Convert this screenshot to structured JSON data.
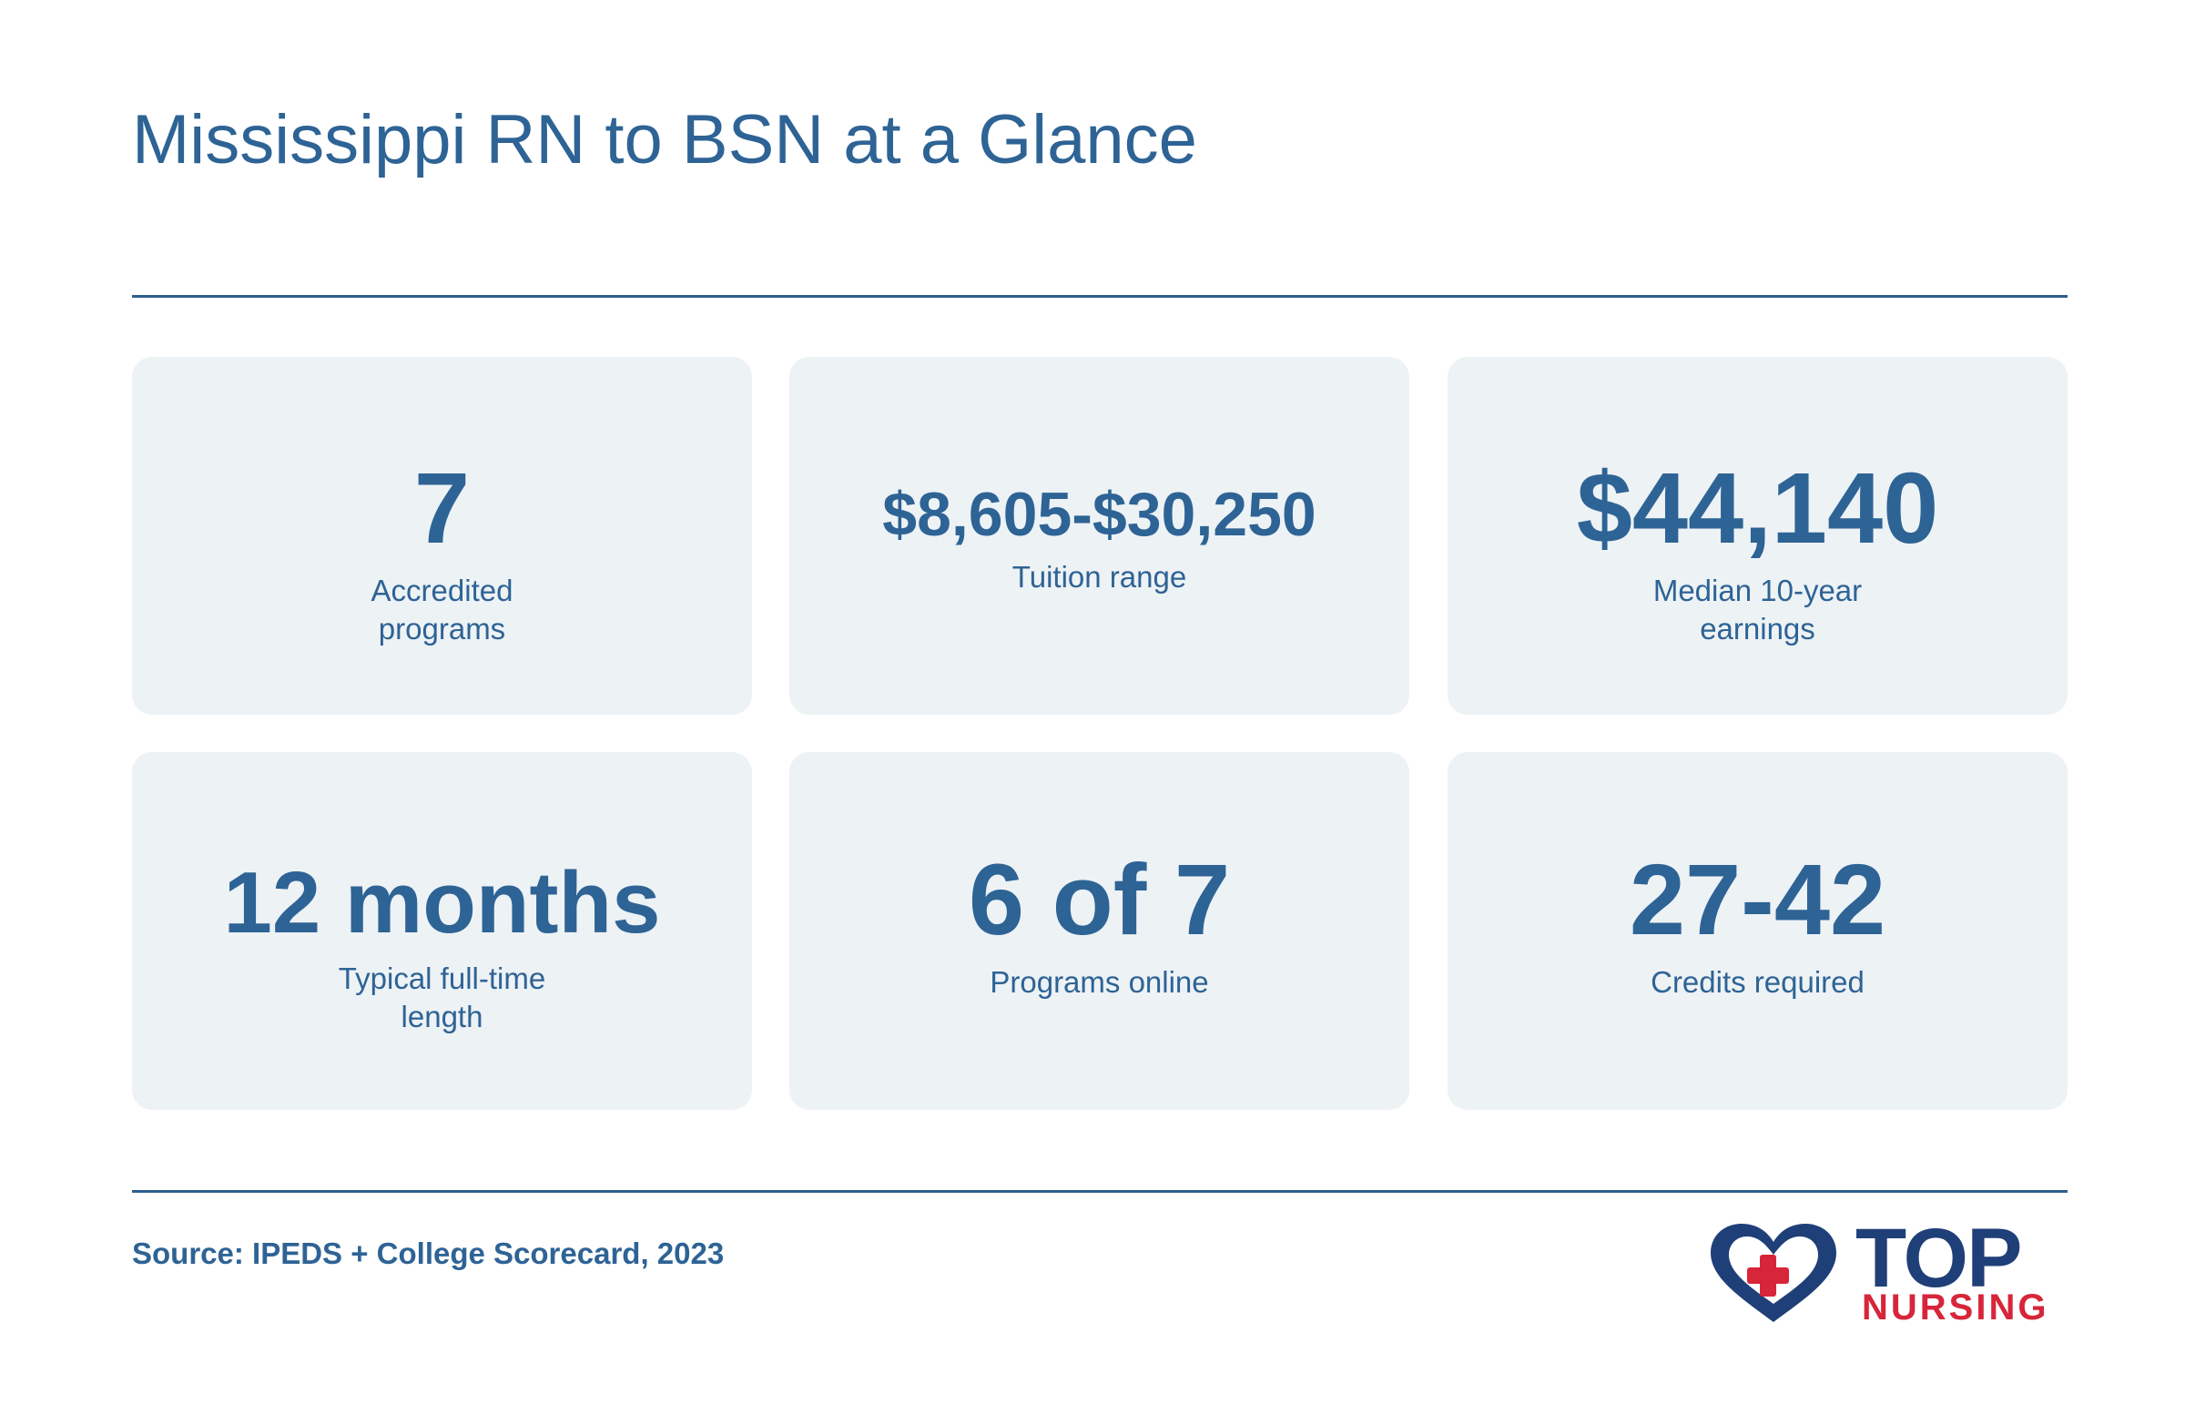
{
  "title": "Mississippi RN to BSN at a Glance",
  "stats": [
    {
      "value": "7",
      "label": "Accredited programs"
    },
    {
      "value": "$8,605-$30,250",
      "label": "Tuition range"
    },
    {
      "value": "$44,140",
      "label": "Median 10-year earnings"
    },
    {
      "value": "12 months",
      "label": "Typical full-time length"
    },
    {
      "value": "6 of 7",
      "label": "Programs online"
    },
    {
      "value": "27-42",
      "label": "Credits required"
    }
  ],
  "source": "Source: IPEDS + College Scorecard, 2023",
  "logo": {
    "top_text": "TOP",
    "bottom_text": "NURSING"
  },
  "colors": {
    "primary": "#2e6395",
    "card_bg": "#edf2f5",
    "logo_navy": "#1f3f78",
    "logo_red": "#d7253a"
  }
}
